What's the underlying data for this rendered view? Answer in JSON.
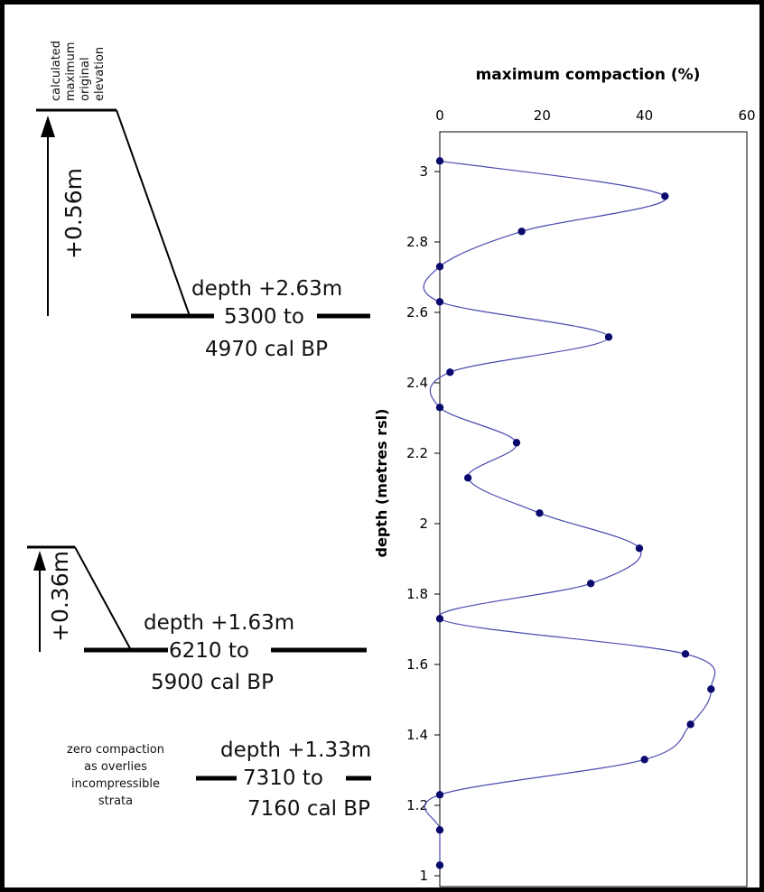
{
  "left_panel": {
    "elevation_label": [
      "calculated",
      "maximum",
      "original",
      "elevation"
    ],
    "upper": {
      "rise": "+0.56m",
      "depth": "depth +2.63m",
      "range_from": "5300 to",
      "range_to": "4970 cal BP"
    },
    "middle": {
      "rise": "+0.36m",
      "depth": "depth +1.63m",
      "range_from": "6210 to",
      "range_to": "5900 cal BP"
    },
    "lower": {
      "note": [
        "zero compaction",
        "as overlies",
        "incompressible",
        "strata"
      ],
      "depth": "depth +1.33m",
      "range_from": "7310 to",
      "range_to": "7160 cal BP"
    }
  },
  "chart_data": {
    "type": "scatter",
    "title": "maximum compaction (%)",
    "xlabel": "maximum compaction (%)",
    "ylabel": "depth (metres rsl)",
    "xlim": [
      0,
      60
    ],
    "ylim": [
      1,
      3.1
    ],
    "x_ticks": [
      "0",
      "20",
      "40",
      "60"
    ],
    "y_ticks": [
      "1",
      "1.2",
      "1.4",
      "1.6",
      "1.8",
      "2",
      "2.2",
      "2.4",
      "2.6",
      "2.8",
      "3"
    ],
    "x_axis_position": "top",
    "grid": false,
    "smoothed_line": true,
    "colors": {
      "line": "#4a4ab0",
      "points": "#0a0a6e"
    },
    "series": [
      {
        "points": [
          {
            "depth": 3.03,
            "compaction": 0
          },
          {
            "depth": 2.93,
            "compaction": 44
          },
          {
            "depth": 2.83,
            "compaction": 16
          },
          {
            "depth": 2.73,
            "compaction": 0
          },
          {
            "depth": 2.63,
            "compaction": 0
          },
          {
            "depth": 2.53,
            "compaction": 33
          },
          {
            "depth": 2.43,
            "compaction": 2
          },
          {
            "depth": 2.33,
            "compaction": 0
          },
          {
            "depth": 2.23,
            "compaction": 15
          },
          {
            "depth": 2.13,
            "compaction": 5.5
          },
          {
            "depth": 2.03,
            "compaction": 19.5
          },
          {
            "depth": 1.93,
            "compaction": 39
          },
          {
            "depth": 1.83,
            "compaction": 29.5
          },
          {
            "depth": 1.73,
            "compaction": 0
          },
          {
            "depth": 1.63,
            "compaction": 48
          },
          {
            "depth": 1.53,
            "compaction": 53
          },
          {
            "depth": 1.43,
            "compaction": 49
          },
          {
            "depth": 1.33,
            "compaction": 40
          },
          {
            "depth": 1.23,
            "compaction": 0
          },
          {
            "depth": 1.13,
            "compaction": 0
          },
          {
            "depth": 1.03,
            "compaction": 0
          }
        ]
      }
    ]
  }
}
